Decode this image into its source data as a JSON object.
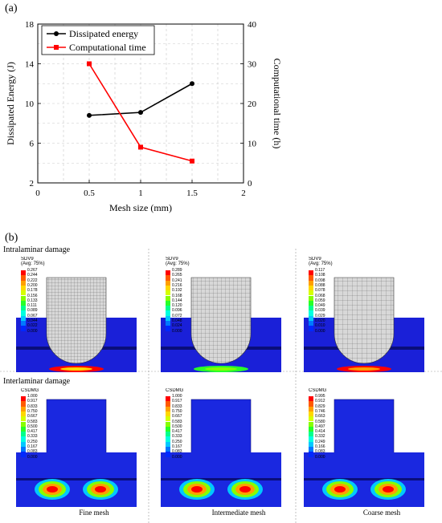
{
  "panel_a_label": "(a)",
  "panel_b_label": "(b)",
  "chart_data": {
    "type": "line",
    "xlabel": "Mesh size (mm)",
    "ylabel": "Dissipated Energy (J)",
    "y2label": "Computational time (h)",
    "xlim": [
      0,
      2
    ],
    "ylim": [
      2,
      18
    ],
    "y2lim": [
      0,
      40
    ],
    "xticks": [
      "0",
      "0.5",
      "1",
      "1.5",
      "2"
    ],
    "yticks": [
      "2",
      "6",
      "10",
      "14",
      "18"
    ],
    "y2ticks": [
      "0",
      "10",
      "20",
      "30",
      "40"
    ],
    "grid": true,
    "legend_position": "top-left",
    "series": [
      {
        "name": "Dissipated energy",
        "axis": "left",
        "color": "#000000",
        "marker": "circle",
        "x": [
          0.5,
          1.0,
          1.5
        ],
        "y": [
          8.8,
          9.1,
          12.0
        ]
      },
      {
        "name": "Computational time",
        "axis": "right",
        "color": "#ff0000",
        "marker": "square",
        "x": [
          0.5,
          1.0,
          1.5
        ],
        "y": [
          30.0,
          9.0,
          5.5
        ]
      }
    ]
  },
  "simulation": {
    "row_labels": [
      "Intralaminar damage",
      "Interlaminar damage"
    ],
    "column_labels": [
      "Fine mesh",
      "Intermediate mesh",
      "Coarse mesh"
    ],
    "rows": [
      [
        {
          "var": "SDV9",
          "avg": "(Avg: 75%)",
          "ticks": [
            "0.267",
            "0.244",
            "0.222",
            "0.200",
            "0.178",
            "0.156",
            "0.133",
            "0.111",
            "0.089",
            "0.067",
            "0.044",
            "0.022",
            "0.000"
          ]
        },
        {
          "var": "SDV9",
          "avg": "(Avg: 75%)",
          "ticks": [
            "0.289",
            "0.265",
            "0.241",
            "0.216",
            "0.192",
            "0.168",
            "0.144",
            "0.120",
            "0.096",
            "0.072",
            "0.048",
            "0.024",
            "0.000"
          ]
        },
        {
          "var": "SDV9",
          "avg": "(Avg: 75%)",
          "ticks": [
            "0.117",
            "0.108",
            "0.098",
            "0.088",
            "0.078",
            "0.068",
            "0.059",
            "0.049",
            "0.039",
            "0.029",
            "0.020",
            "0.010",
            "0.000"
          ]
        }
      ],
      [
        {
          "var": "CSDMG",
          "avg": "",
          "ticks": [
            "1.000",
            "0.917",
            "0.833",
            "0.750",
            "0.667",
            "0.583",
            "0.500",
            "0.417",
            "0.333",
            "0.250",
            "0.167",
            "0.083",
            "0.000"
          ]
        },
        {
          "var": "CSDMG",
          "avg": "",
          "ticks": [
            "1.000",
            "0.917",
            "0.833",
            "0.750",
            "0.667",
            "0.583",
            "0.500",
            "0.417",
            "0.333",
            "0.250",
            "0.167",
            "0.083",
            "0.000"
          ]
        },
        {
          "var": "CSDMG",
          "avg": "",
          "ticks": [
            "0.995",
            "0.912",
            "0.829",
            "0.746",
            "0.663",
            "0.580",
            "0.497",
            "0.414",
            "0.332",
            "0.249",
            "0.166",
            "0.083",
            "0.000"
          ]
        }
      ]
    ],
    "contour_colors": [
      "#ff0000",
      "#ff5a00",
      "#ffa000",
      "#ffd800",
      "#d6ff00",
      "#86ff00",
      "#28ff28",
      "#00ff8c",
      "#00ffe0",
      "#00c8ff",
      "#0078ff",
      "#0028ff",
      "#0000c8"
    ]
  }
}
